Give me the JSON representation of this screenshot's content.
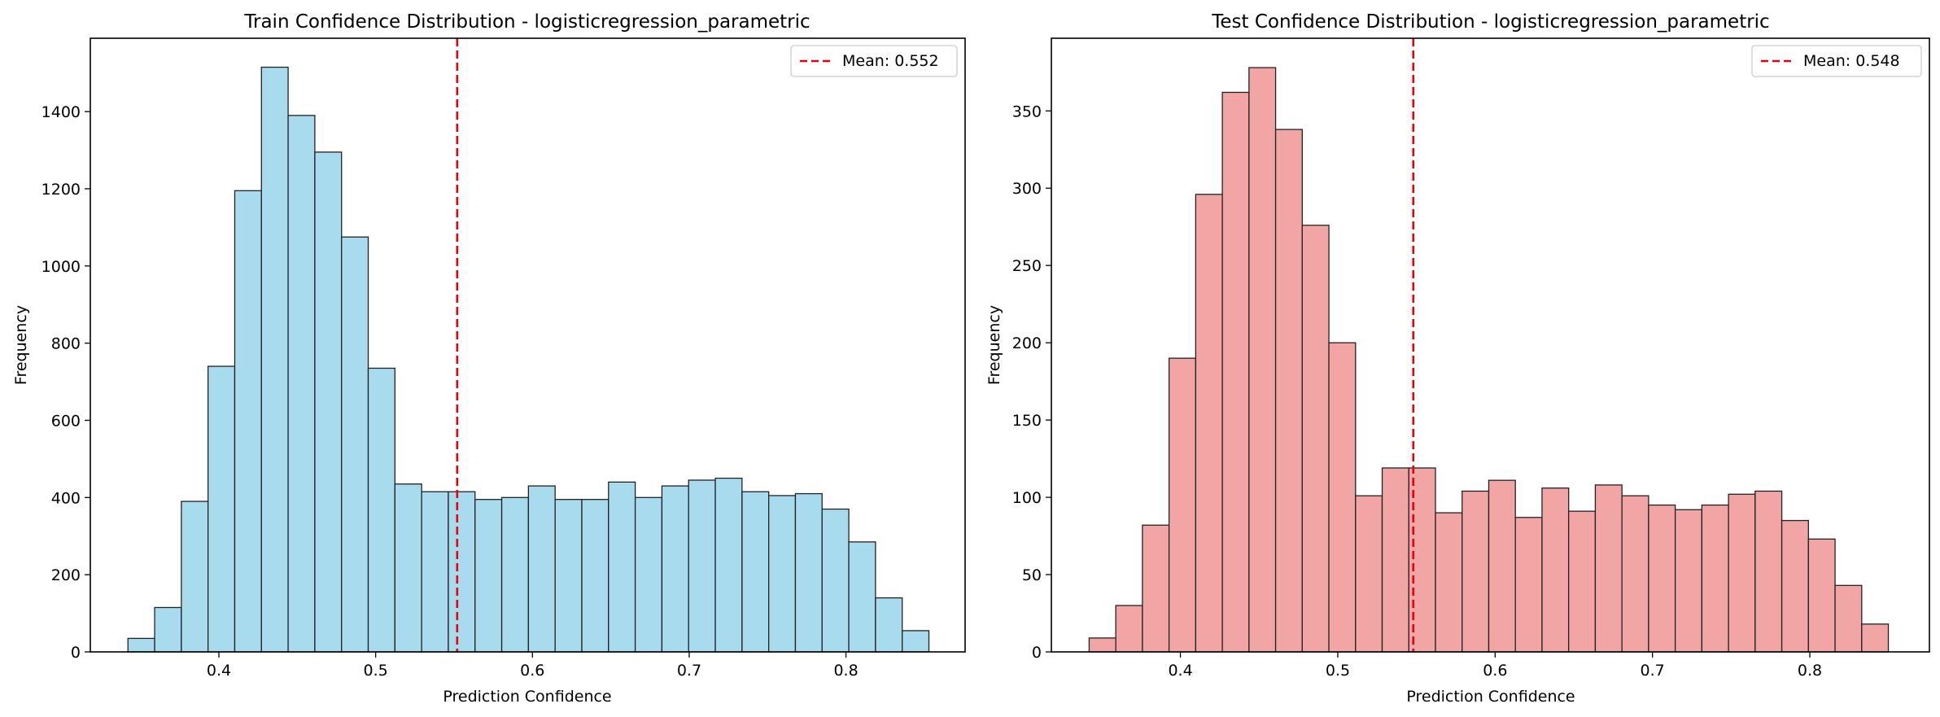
{
  "chart_data": [
    {
      "type": "bar",
      "subtype": "histogram",
      "title": "Train Confidence Distribution - logisticregression_parametric",
      "xlabel": "Prediction Confidence",
      "ylabel": "Frequency",
      "xlim": [
        0.318,
        0.876
      ],
      "ylim": [
        0,
        1590
      ],
      "xticks": [
        0.4,
        0.5,
        0.6,
        0.7,
        0.8
      ],
      "xtick_labels": [
        "0.4",
        "0.5",
        "0.6",
        "0.7",
        "0.8"
      ],
      "yticks": [
        0,
        200,
        400,
        600,
        800,
        1000,
        1200,
        1400
      ],
      "ytick_labels": [
        "0",
        "200",
        "400",
        "600",
        "800",
        "1000",
        "1200",
        "1400"
      ],
      "bin_start": 0.342,
      "bin_width": 0.01703,
      "values": [
        35,
        115,
        390,
        740,
        1195,
        1515,
        1390,
        1295,
        1075,
        735,
        435,
        415,
        415,
        395,
        400,
        430,
        395,
        395,
        440,
        400,
        430,
        445,
        450,
        415,
        405,
        410,
        370,
        285,
        140,
        55
      ],
      "bar_color": "#a9dbee",
      "edge_color": "#222222",
      "mean_line": {
        "value": 0.552,
        "label": "Mean: 0.552",
        "color": "#e8000b"
      },
      "legend_position": "top-right",
      "grid": false
    },
    {
      "type": "bar",
      "subtype": "histogram",
      "title": "Test Confidence Distribution - logisticregression_parametric",
      "xlabel": "Prediction Confidence",
      "ylabel": "Frequency",
      "xlim": [
        0.318,
        0.876
      ],
      "ylim": [
        0,
        397
      ],
      "xticks": [
        0.4,
        0.5,
        0.6,
        0.7,
        0.8
      ],
      "xtick_labels": [
        "0.4",
        "0.5",
        "0.6",
        "0.7",
        "0.8"
      ],
      "yticks": [
        0,
        50,
        100,
        150,
        200,
        250,
        300,
        350
      ],
      "ytick_labels": [
        "0",
        "50",
        "100",
        "150",
        "200",
        "250",
        "300",
        "350"
      ],
      "bin_start": 0.342,
      "bin_width": 0.01693,
      "values": [
        9,
        30,
        82,
        190,
        296,
        362,
        378,
        338,
        276,
        200,
        101,
        119,
        119,
        90,
        104,
        111,
        87,
        106,
        91,
        108,
        101,
        95,
        92,
        95,
        102,
        104,
        85,
        73,
        43,
        18
      ],
      "bar_color": "#f2a5a5",
      "edge_color": "#222222",
      "mean_line": {
        "value": 0.548,
        "label": "Mean: 0.548",
        "color": "#e8000b"
      },
      "legend_position": "top-right",
      "grid": false
    }
  ]
}
